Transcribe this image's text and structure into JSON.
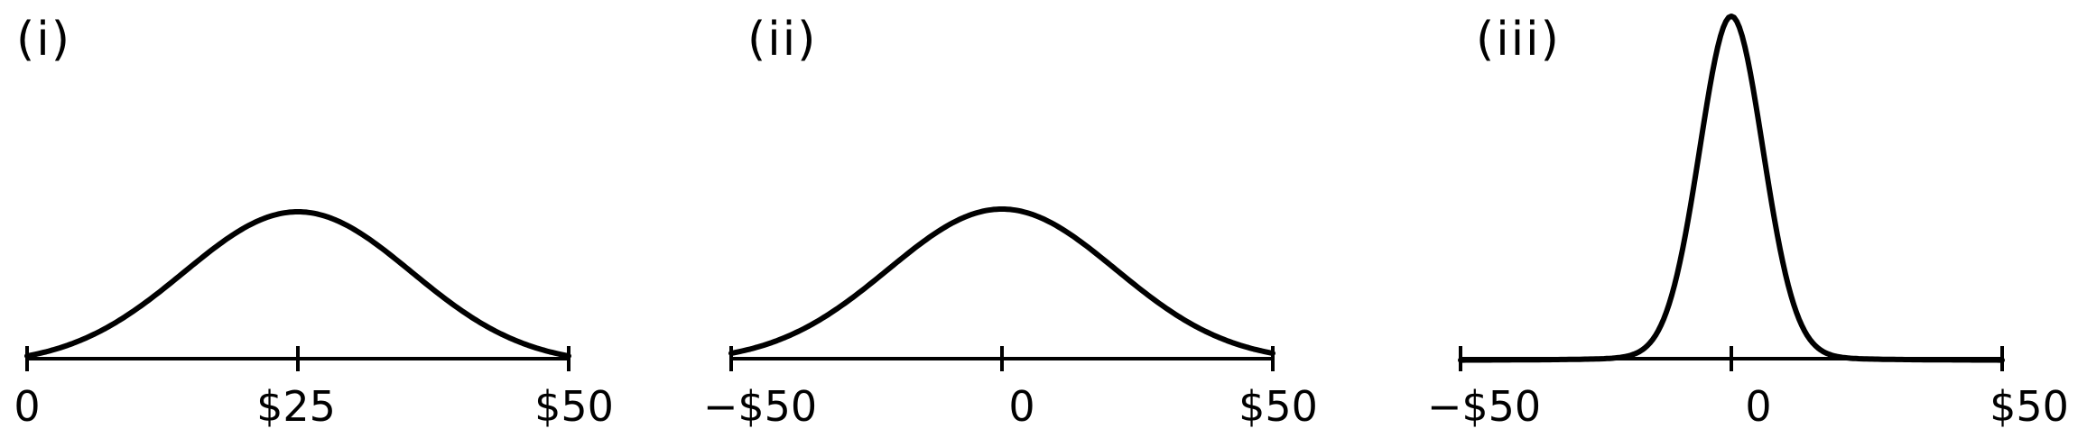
{
  "chart_data": [
    {
      "type": "line",
      "panel_label": "(i)",
      "x_ticks": [
        "0",
        "$25",
        "$50"
      ],
      "xlim": [
        0,
        50
      ],
      "center": 25,
      "spread": 10.5,
      "x": [
        0,
        5,
        10,
        15,
        20,
        25,
        30,
        35,
        40,
        45,
        50
      ],
      "y": [
        0.03,
        0.17,
        0.37,
        0.59,
        0.83,
        1.0,
        0.85,
        0.6,
        0.36,
        0.16,
        0.03
      ]
    },
    {
      "type": "line",
      "panel_label": "(ii)",
      "x_ticks": [
        "−$50",
        "0",
        "$50"
      ],
      "xlim": [
        -50,
        50
      ],
      "center": 0,
      "spread": 21,
      "x": [
        -50,
        -40,
        -30,
        -20,
        -10,
        0,
        10,
        20,
        30,
        40,
        50
      ],
      "y": [
        0.03,
        0.17,
        0.37,
        0.6,
        0.85,
        1.0,
        0.84,
        0.58,
        0.35,
        0.15,
        0.03
      ]
    },
    {
      "type": "line",
      "panel_label": "(iii)",
      "x_ticks": [
        "−$50",
        "0",
        "$50"
      ],
      "xlim": [
        -50,
        50
      ],
      "center": 0,
      "spread": 6,
      "x": [
        -50,
        -30,
        -20,
        -15,
        -10,
        -5,
        0,
        5,
        10,
        15,
        20,
        30,
        50
      ],
      "y": [
        0.0,
        0.0,
        0.02,
        0.05,
        0.18,
        0.6,
        1.0,
        0.6,
        0.18,
        0.05,
        0.02,
        0.0,
        0.0
      ]
    }
  ]
}
